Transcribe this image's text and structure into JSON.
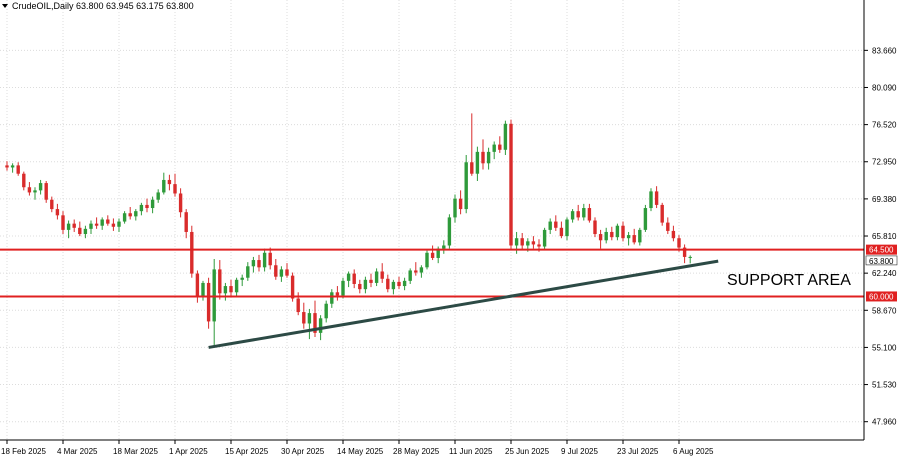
{
  "chart_data": {
    "type": "candlestick",
    "symbol_line": "CrudeOIL,Daily  63.800 63.945 63.175 63.800",
    "ylim": [
      46.2,
      88.5
    ],
    "y_ticks": [
      "83.660",
      "80.090",
      "76.520",
      "72.950",
      "69.380",
      "65.810",
      "62.240",
      "58.670",
      "55.100",
      "51.530",
      "47.960"
    ],
    "x_ticks": [
      {
        "label": "18 Feb 2025",
        "index": 0
      },
      {
        "label": "4 Mar 2025",
        "index": 10
      },
      {
        "label": "18 Mar 2025",
        "index": 20
      },
      {
        "label": "1 Apr 2025",
        "index": 30
      },
      {
        "label": "15 Apr 2025",
        "index": 40
      },
      {
        "label": "30 Apr 2025",
        "index": 50
      },
      {
        "label": "14 May 2025",
        "index": 60
      },
      {
        "label": "28 May 2025",
        "index": 70
      },
      {
        "label": "11 Jun 2025",
        "index": 80
      },
      {
        "label": "25 Jun 2025",
        "index": 90
      },
      {
        "label": "9 Jul 2025",
        "index": 100
      },
      {
        "label": "23 Jul 2025",
        "index": 110
      },
      {
        "label": "6 Aug 2025",
        "index": 120
      }
    ],
    "grid": true,
    "bull_color": "#2e9a3a",
    "bear_color": "#d92b2b",
    "ohlc": [
      [
        72.6,
        73.0,
        72.1,
        72.4
      ],
      [
        72.4,
        72.8,
        71.9,
        72.6
      ],
      [
        72.6,
        72.9,
        71.6,
        71.8
      ],
      [
        71.8,
        72.0,
        70.2,
        70.5
      ],
      [
        70.5,
        71.0,
        69.7,
        70.0
      ],
      [
        70.0,
        70.5,
        69.3,
        70.2
      ],
      [
        70.2,
        71.2,
        69.8,
        70.9
      ],
      [
        70.9,
        71.1,
        69.0,
        69.3
      ],
      [
        69.3,
        69.6,
        68.1,
        68.4
      ],
      [
        68.4,
        68.9,
        67.4,
        67.8
      ],
      [
        67.8,
        68.2,
        66.0,
        66.4
      ],
      [
        66.4,
        67.3,
        65.6,
        67.0
      ],
      [
        67.0,
        67.4,
        66.2,
        66.6
      ],
      [
        66.6,
        67.2,
        65.8,
        66.0
      ],
      [
        66.0,
        66.8,
        65.6,
        66.5
      ],
      [
        66.5,
        67.3,
        66.0,
        67.0
      ],
      [
        67.0,
        67.6,
        66.5,
        66.8
      ],
      [
        66.8,
        67.6,
        66.4,
        67.4
      ],
      [
        67.4,
        67.8,
        66.8,
        67.0
      ],
      [
        67.0,
        67.5,
        66.3,
        66.7
      ],
      [
        66.7,
        67.5,
        66.2,
        67.2
      ],
      [
        67.2,
        68.2,
        67.0,
        68.0
      ],
      [
        68.0,
        68.6,
        67.4,
        67.7
      ],
      [
        67.7,
        68.4,
        67.3,
        68.2
      ],
      [
        68.2,
        69.0,
        67.8,
        68.8
      ],
      [
        68.8,
        69.4,
        68.1,
        68.5
      ],
      [
        68.5,
        69.6,
        68.0,
        69.3
      ],
      [
        69.3,
        70.3,
        69.0,
        70.0
      ],
      [
        70.0,
        71.9,
        69.8,
        71.2
      ],
      [
        71.2,
        71.7,
        70.2,
        70.8
      ],
      [
        70.8,
        71.8,
        69.6,
        69.9
      ],
      [
        69.9,
        70.4,
        67.6,
        68.1
      ],
      [
        68.1,
        68.4,
        65.6,
        66.2
      ],
      [
        66.2,
        66.8,
        61.8,
        62.2
      ],
      [
        62.2,
        62.5,
        59.4,
        60.0
      ],
      [
        60.0,
        61.5,
        59.6,
        61.3
      ],
      [
        61.3,
        61.8,
        56.9,
        57.6
      ],
      [
        57.6,
        63.6,
        55.1,
        62.6
      ],
      [
        62.6,
        63.5,
        59.7,
        60.3
      ],
      [
        60.3,
        61.3,
        59.6,
        61.0
      ],
      [
        61.0,
        61.6,
        60.0,
        60.4
      ],
      [
        60.4,
        61.8,
        60.0,
        61.6
      ],
      [
        61.6,
        62.1,
        61.0,
        61.8
      ],
      [
        61.8,
        63.3,
        61.5,
        62.9
      ],
      [
        62.9,
        63.8,
        62.3,
        63.5
      ],
      [
        63.5,
        64.0,
        62.4,
        62.8
      ],
      [
        62.8,
        64.6,
        62.4,
        64.2
      ],
      [
        64.2,
        64.7,
        62.6,
        63.0
      ],
      [
        63.0,
        63.6,
        61.6,
        61.9
      ],
      [
        61.9,
        62.9,
        61.4,
        62.6
      ],
      [
        62.6,
        63.2,
        61.8,
        62.0
      ],
      [
        62.0,
        62.3,
        59.5,
        59.8
      ],
      [
        59.8,
        60.4,
        58.2,
        58.5
      ],
      [
        58.5,
        59.4,
        56.9,
        57.4
      ],
      [
        57.4,
        58.8,
        55.9,
        58.4
      ],
      [
        58.4,
        59.6,
        56.1,
        56.5
      ],
      [
        56.5,
        58.2,
        55.8,
        57.9
      ],
      [
        57.9,
        59.6,
        57.5,
        59.3
      ],
      [
        59.3,
        60.7,
        58.9,
        60.4
      ],
      [
        60.4,
        61.0,
        59.6,
        60.1
      ],
      [
        60.1,
        61.8,
        59.8,
        61.5
      ],
      [
        61.5,
        62.4,
        60.9,
        62.2
      ],
      [
        62.2,
        62.6,
        60.8,
        61.2
      ],
      [
        61.2,
        61.6,
        60.3,
        60.7
      ],
      [
        60.7,
        61.9,
        60.3,
        61.6
      ],
      [
        61.6,
        62.2,
        60.9,
        61.3
      ],
      [
        61.3,
        62.7,
        61.0,
        62.4
      ],
      [
        62.4,
        63.2,
        61.3,
        61.7
      ],
      [
        61.7,
        62.1,
        60.4,
        60.7
      ],
      [
        60.7,
        61.6,
        60.2,
        61.4
      ],
      [
        61.4,
        61.9,
        60.7,
        61.0
      ],
      [
        61.0,
        61.8,
        60.6,
        61.5
      ],
      [
        61.5,
        62.7,
        61.2,
        62.5
      ],
      [
        62.5,
        63.3,
        62.0,
        62.3
      ],
      [
        62.3,
        63.0,
        61.8,
        62.8
      ],
      [
        62.8,
        64.4,
        62.6,
        64.2
      ],
      [
        64.2,
        64.9,
        63.5,
        63.7
      ],
      [
        63.7,
        64.8,
        63.2,
        64.6
      ],
      [
        64.6,
        65.4,
        64.1,
        64.9
      ],
      [
        64.9,
        67.9,
        64.6,
        67.6
      ],
      [
        67.6,
        69.8,
        67.1,
        69.4
      ],
      [
        69.4,
        70.2,
        67.9,
        68.4
      ],
      [
        68.4,
        73.6,
        68.0,
        72.9
      ],
      [
        72.9,
        77.6,
        71.6,
        71.8
      ],
      [
        71.8,
        74.4,
        71.1,
        73.9
      ],
      [
        73.9,
        75.1,
        72.2,
        72.8
      ],
      [
        72.8,
        74.3,
        72.2,
        73.9
      ],
      [
        73.9,
        74.9,
        73.2,
        74.6
      ],
      [
        74.6,
        75.4,
        73.8,
        74.1
      ],
      [
        74.1,
        76.9,
        73.6,
        76.6
      ],
      [
        76.6,
        77.0,
        64.5,
        64.9
      ],
      [
        64.9,
        66.2,
        64.1,
        65.6
      ],
      [
        65.6,
        66.1,
        64.5,
        64.9
      ],
      [
        64.9,
        65.6,
        64.3,
        65.3
      ],
      [
        65.3,
        65.8,
        64.6,
        65.0
      ],
      [
        65.0,
        65.5,
        64.3,
        64.8
      ],
      [
        64.8,
        66.6,
        64.5,
        66.4
      ],
      [
        66.4,
        67.5,
        66.0,
        67.2
      ],
      [
        67.2,
        67.8,
        66.3,
        66.6
      ],
      [
        66.6,
        67.2,
        65.6,
        65.8
      ],
      [
        65.8,
        67.6,
        65.4,
        67.4
      ],
      [
        67.4,
        68.4,
        67.1,
        68.2
      ],
      [
        68.2,
        68.8,
        67.3,
        67.6
      ],
      [
        67.6,
        68.9,
        67.3,
        68.5
      ],
      [
        68.5,
        68.9,
        67.1,
        67.3
      ],
      [
        67.3,
        67.6,
        65.7,
        66.0
      ],
      [
        66.0,
        66.4,
        64.6,
        65.4
      ],
      [
        65.4,
        66.6,
        65.1,
        66.2
      ],
      [
        66.2,
        66.7,
        65.4,
        65.7
      ],
      [
        65.7,
        67.0,
        65.4,
        66.8
      ],
      [
        66.8,
        67.2,
        65.3,
        65.6
      ],
      [
        65.6,
        66.2,
        64.9,
        65.9
      ],
      [
        65.9,
        66.5,
        65.0,
        65.2
      ],
      [
        65.2,
        66.6,
        64.9,
        66.4
      ],
      [
        66.4,
        68.8,
        66.2,
        68.5
      ],
      [
        68.5,
        70.4,
        68.2,
        70.1
      ],
      [
        70.1,
        70.6,
        68.5,
        68.8
      ],
      [
        68.8,
        69.0,
        66.8,
        67.1
      ],
      [
        67.1,
        67.6,
        66.0,
        66.3
      ],
      [
        66.3,
        66.8,
        65.3,
        65.6
      ],
      [
        65.6,
        65.9,
        64.3,
        64.7
      ],
      [
        64.7,
        65.0,
        63.2,
        63.8
      ],
      [
        63.8,
        63.95,
        63.18,
        63.8
      ]
    ],
    "horizontal_lines": [
      {
        "value": 64.5,
        "label": "64.500",
        "color": "#e02020"
      },
      {
        "value": 60.0,
        "label": "60.000",
        "color": "#e02020"
      }
    ],
    "last_price": {
      "value": 63.8,
      "label": "63.800"
    },
    "trendline": {
      "from": {
        "index": 36,
        "price": 55.1
      },
      "to": {
        "index": 127,
        "price": 63.4
      },
      "color": "#2c4a45"
    },
    "annotation": "SUPPORT AREA"
  }
}
